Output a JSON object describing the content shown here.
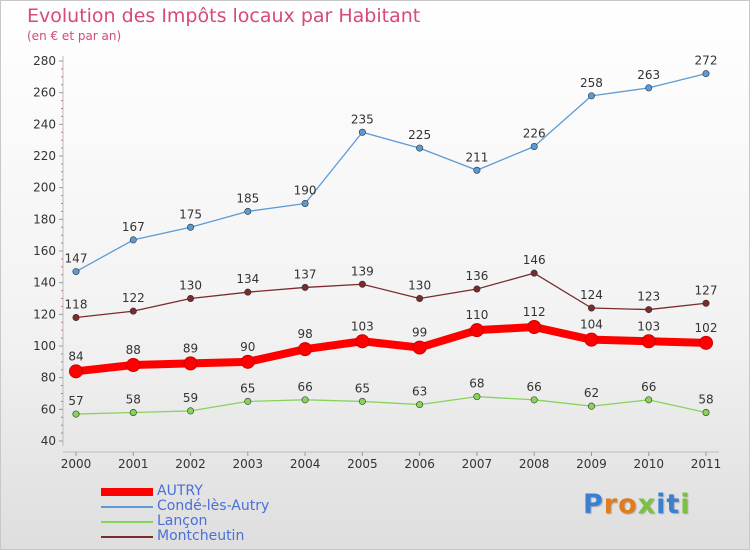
{
  "chart_data": {
    "type": "line",
    "title": "Evolution des Impôts locaux par Habitant",
    "subtitle": "(en € et par an)",
    "x": [
      "2000",
      "2001",
      "2002",
      "2003",
      "2004",
      "2005",
      "2006",
      "2007",
      "2008",
      "2009",
      "2010",
      "2011"
    ],
    "ylim": [
      40,
      280
    ],
    "yticks": [
      40,
      60,
      80,
      100,
      120,
      140,
      160,
      180,
      200,
      220,
      240,
      260,
      280
    ],
    "grid": false,
    "legend_position": "bottom-left",
    "series": [
      {
        "name": "AUTRY",
        "color": "#ff0000",
        "values": [
          84,
          88,
          89,
          90,
          98,
          103,
          99,
          110,
          112,
          104,
          103,
          102
        ]
      },
      {
        "name": "Condé-lès-Autry",
        "color": "#5b9bd5",
        "values": [
          147,
          167,
          175,
          185,
          190,
          235,
          225,
          211,
          226,
          258,
          263,
          272
        ]
      },
      {
        "name": "Lançon",
        "color": "#88d45a",
        "values": [
          57,
          58,
          59,
          65,
          66,
          65,
          63,
          68,
          66,
          62,
          66,
          58
        ]
      },
      {
        "name": "Montcheutin",
        "color": "#7b2b2b",
        "values": [
          118,
          122,
          130,
          134,
          137,
          139,
          130,
          136,
          146,
          124,
          123,
          127
        ]
      }
    ]
  },
  "logo": {
    "letters": [
      "P",
      "r",
      "o",
      "x",
      "i",
      "t",
      "i"
    ],
    "colors": [
      "#3a7fd0",
      "#e07b1f",
      "#e07b1f",
      "#7bc043",
      "#3a7fd0",
      "#3a7fd0",
      "#7bc043"
    ]
  }
}
